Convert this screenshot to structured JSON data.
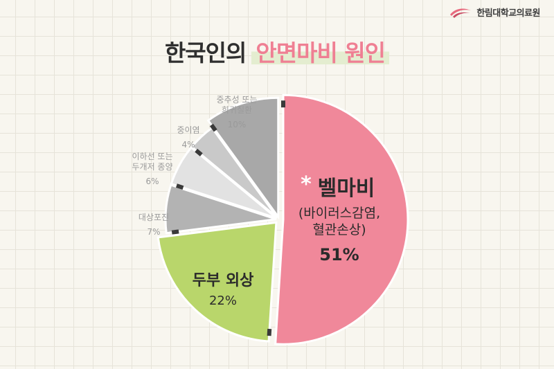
{
  "logo": {
    "text": "한림대학교의료원"
  },
  "title": {
    "part1": "한국인의",
    "part2": "안면마비 원인"
  },
  "chart_data": {
    "type": "pie",
    "title": "한국인의 안면마비 원인",
    "slices": [
      {
        "label": "벨마비",
        "sublabel": [
          "(바이러스감염,",
          "혈관손상)"
        ],
        "value": 51,
        "value_label": "51%",
        "color": "#f0889a"
      },
      {
        "label": "두부 외상",
        "value": 22,
        "value_label": "22%",
        "color": "#b9d66b"
      },
      {
        "label": "대상포진",
        "value": 7,
        "value_label": "7%",
        "color": "#b3b3b3"
      },
      {
        "label": "이하선 또는\n두개저 종양",
        "value": 6,
        "value_label": "6%",
        "color": "#e2e2e2"
      },
      {
        "label": "중이염",
        "value": 4,
        "value_label": "4%",
        "color": "#c9c9c9"
      },
      {
        "label": "중추성 또는\n희귀질환",
        "value": 10,
        "value_label": "10%",
        "color": "#a8a8a8"
      }
    ],
    "highlight_marker": "*",
    "colors": {
      "tick": "#3a3a3a",
      "outer_label": "#9a9a9a",
      "inner_label": "#2b2b2b"
    }
  }
}
